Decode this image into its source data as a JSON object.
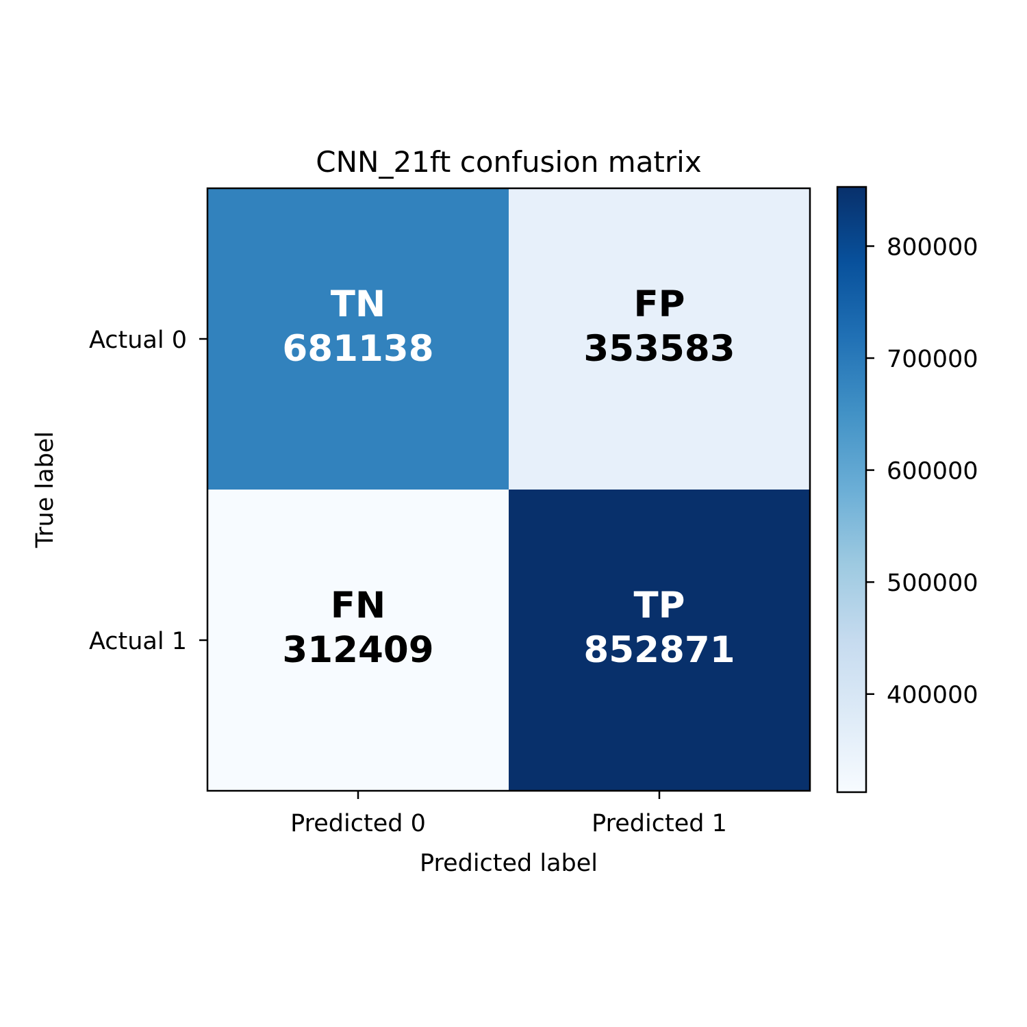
{
  "chart_data": {
    "type": "heatmap",
    "title": "CNN_21ft confusion matrix",
    "xlabel": "Predicted label",
    "ylabel": "True label",
    "x_categories": [
      "Predicted 0",
      "Predicted 1"
    ],
    "y_categories": [
      "Actual 0",
      "Actual 1"
    ],
    "cells": [
      [
        {
          "label": "TN",
          "value": 681138,
          "value_text": "681138"
        },
        {
          "label": "FP",
          "value": 353583,
          "value_text": "353583"
        }
      ],
      [
        {
          "label": "FN",
          "value": 312409,
          "value_text": "312409"
        },
        {
          "label": "TP",
          "value": 852871,
          "value_text": "852871"
        }
      ]
    ],
    "colormap": "Blues",
    "colors": {
      "TN": "#3282bd",
      "FP": "#e7f0fa",
      "FN": "#f7fbff",
      "TP": "#08306b"
    },
    "text_colors": {
      "TN": "#ffffff",
      "FP": "#000000",
      "FN": "#000000",
      "TP": "#ffffff"
    },
    "colorbar": {
      "vmin": 312409,
      "vmax": 852871,
      "ticks": [
        400000,
        500000,
        600000,
        700000,
        800000
      ],
      "tick_labels": [
        "400000",
        "500000",
        "600000",
        "700000",
        "800000"
      ]
    }
  }
}
